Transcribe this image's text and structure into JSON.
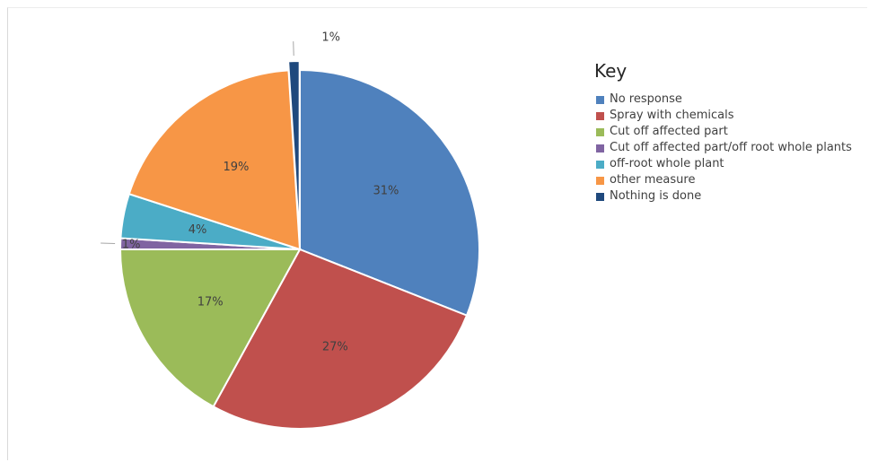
{
  "legend_title": "Key",
  "chart_data": {
    "type": "pie",
    "legend_position": "right",
    "slices": [
      {
        "label": "No response",
        "value": 31,
        "display": "31%",
        "color": "#4f81bd"
      },
      {
        "label": "Spray with chemicals",
        "value": 27,
        "display": "27%",
        "color": "#c0504d"
      },
      {
        "label": "Cut off affected part",
        "value": 17,
        "display": "17%",
        "color": "#9bbb59"
      },
      {
        "label": "Cut off affected part/off root whole plants",
        "value": 1,
        "display": "1%",
        "color": "#8064a2"
      },
      {
        "label": "off-root whole plant",
        "value": 4,
        "display": "4%",
        "color": "#4bacc6"
      },
      {
        "label": "other measure",
        "value": 19,
        "display": "19%",
        "color": "#f79646"
      },
      {
        "label": "Nothing is done",
        "value": 1,
        "display": "1%",
        "color": "#1f497d"
      }
    ]
  }
}
